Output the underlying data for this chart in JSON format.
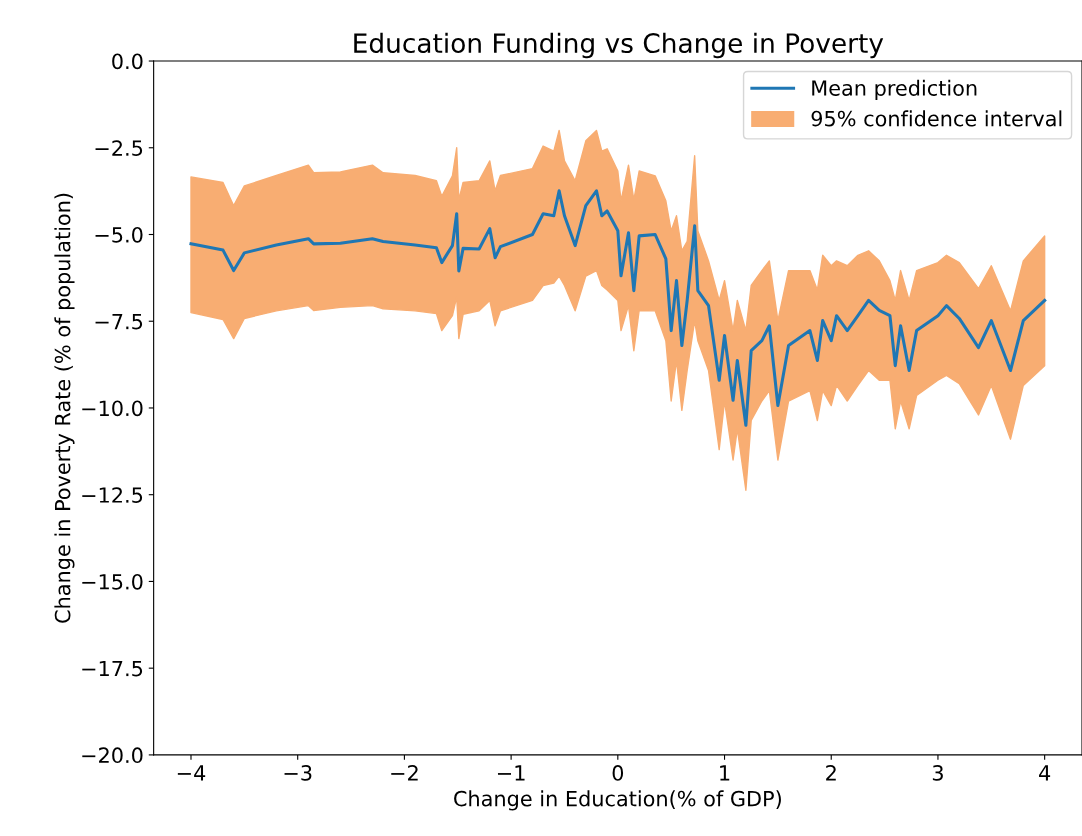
{
  "chart_data": {
    "type": "line",
    "title": "Education Funding vs Change in Poverty",
    "xlabel": "Change in Education(% of GDP)",
    "ylabel": "Change in Poverty Rate (% of population)",
    "x": [
      -4,
      -3.7,
      -3.6,
      -3.5,
      -3.2,
      -2.9,
      -2.85,
      -2.6,
      -2.3,
      -2.2,
      -1.9,
      -1.7,
      -1.65,
      -1.55,
      -1.51,
      -1.49,
      -1.45,
      -1.3,
      -1.2,
      -1.15,
      -1.1,
      -0.8,
      -0.7,
      -0.6,
      -0.55,
      -0.5,
      -0.4,
      -0.3,
      -0.2,
      -0.15,
      -0.1,
      0,
      0.03,
      0.1,
      0.15,
      0.2,
      0.35,
      0.45,
      0.5,
      0.55,
      0.6,
      0.65,
      0.72,
      0.75,
      0.85,
      0.95,
      1.0,
      1.08,
      1.12,
      1.2,
      1.25,
      1.35,
      1.42,
      1.5,
      1.6,
      1.8,
      1.87,
      1.92,
      2.0,
      2.05,
      2.15,
      2.25,
      2.35,
      2.45,
      2.55,
      2.6,
      2.65,
      2.73,
      2.8,
      3.0,
      3.08,
      3.2,
      3.38,
      3.5,
      3.68,
      3.8,
      4.0
    ],
    "series": [
      {
        "name": "Mean prediction",
        "color": "#1f77b4",
        "values": [
          -5.27,
          -5.45,
          -6.04,
          -5.53,
          -5.3,
          -5.12,
          -5.27,
          -5.25,
          -5.12,
          -5.2,
          -5.3,
          -5.38,
          -5.81,
          -5.32,
          -4.4,
          -6.05,
          -5.4,
          -5.42,
          -4.83,
          -5.67,
          -5.35,
          -5.0,
          -4.4,
          -4.46,
          -3.74,
          -4.46,
          -5.32,
          -4.17,
          -3.74,
          -4.46,
          -4.32,
          -4.89,
          -6.19,
          -4.95,
          -6.62,
          -5.04,
          -5.0,
          -5.7,
          -7.77,
          -6.33,
          -8.2,
          -6.9,
          -4.75,
          -6.62,
          -7.05,
          -9.2,
          -7.91,
          -9.78,
          -8.63,
          -10.5,
          -8.35,
          -8.06,
          -7.63,
          -9.93,
          -8.2,
          -7.77,
          -8.63,
          -7.48,
          -8.06,
          -7.34,
          -7.77,
          -7.34,
          -6.9,
          -7.19,
          -7.34,
          -8.78,
          -7.63,
          -8.92,
          -7.77,
          -7.34,
          -7.05,
          -7.42,
          -8.26,
          -7.48,
          -8.92,
          -7.48,
          -6.9
        ],
        "lower": [
          -7.25,
          -7.45,
          -8.0,
          -7.42,
          -7.2,
          -7.05,
          -7.19,
          -7.1,
          -7.05,
          -7.14,
          -7.2,
          -7.28,
          -7.77,
          -7.34,
          -6.8,
          -8.0,
          -7.3,
          -7.2,
          -6.9,
          -7.63,
          -7.2,
          -6.9,
          -6.47,
          -6.4,
          -6.2,
          -6.47,
          -7.2,
          -6.2,
          -6.04,
          -6.47,
          -6.6,
          -6.9,
          -7.77,
          -7.05,
          -8.35,
          -7.19,
          -7.2,
          -8.06,
          -9.8,
          -8.63,
          -10.07,
          -8.92,
          -7.48,
          -8.06,
          -8.92,
          -11.2,
          -9.8,
          -11.5,
          -10.6,
          -12.37,
          -10.36,
          -9.8,
          -9.5,
          -11.5,
          -9.8,
          -9.5,
          -10.36,
          -9.5,
          -9.93,
          -9.35,
          -9.8,
          -9.35,
          -8.92,
          -9.2,
          -9.2,
          -10.6,
          -9.8,
          -10.6,
          -9.64,
          -9.2,
          -9.06,
          -9.3,
          -10.2,
          -9.35,
          -10.9,
          -9.35,
          -8.78
        ],
        "upper": [
          -3.34,
          -3.5,
          -4.17,
          -3.6,
          -3.3,
          -3.0,
          -3.22,
          -3.2,
          -3.0,
          -3.22,
          -3.3,
          -3.45,
          -3.9,
          -3.31,
          -2.5,
          -4.0,
          -3.5,
          -3.45,
          -2.88,
          -3.74,
          -3.3,
          -3.1,
          -2.45,
          -2.6,
          -2.0,
          -2.88,
          -3.45,
          -2.3,
          -2.0,
          -2.6,
          -2.53,
          -3.17,
          -4.03,
          -3.0,
          -4.0,
          -3.17,
          -3.31,
          -4.03,
          -4.9,
          -4.46,
          -5.47,
          -5.2,
          -2.73,
          -4.9,
          -5.76,
          -6.9,
          -6.33,
          -7.77,
          -6.9,
          -7.77,
          -6.47,
          -6.04,
          -5.76,
          -7.48,
          -6.04,
          -6.04,
          -6.6,
          -5.6,
          -5.9,
          -5.76,
          -5.9,
          -5.6,
          -5.47,
          -5.76,
          -6.33,
          -6.9,
          -6.04,
          -6.9,
          -6.04,
          -5.81,
          -5.6,
          -5.81,
          -6.56,
          -5.9,
          -7.2,
          -5.76,
          -5.04
        ]
      },
      {
        "type": "area",
        "name": "95% confidence interval",
        "color": "#f8ad72",
        "values": [
          null,
          null,
          null,
          null,
          null,
          null,
          null,
          null,
          null,
          null,
          null,
          null,
          null,
          null,
          null,
          null,
          null,
          null,
          null,
          null,
          null,
          null,
          null,
          null,
          null,
          null,
          null,
          null,
          null,
          null,
          null,
          null,
          null,
          null,
          null,
          null,
          null,
          null,
          null,
          null,
          null,
          null,
          null,
          null,
          null,
          null,
          null,
          null,
          null,
          null,
          null,
          null,
          null,
          null,
          null,
          null,
          null,
          null,
          null,
          null,
          null,
          null,
          null,
          null,
          null,
          null,
          null,
          null,
          null,
          null,
          null,
          null,
          null,
          null,
          null,
          null,
          null
        ]
      }
    ],
    "xlim": [
      -4.35,
      4.35
    ],
    "ylim": [
      -20,
      0
    ],
    "xticks": [
      {
        "value": -4,
        "label": "−4"
      },
      {
        "value": -3,
        "label": "−3"
      },
      {
        "value": -2,
        "label": "−2"
      },
      {
        "value": -1,
        "label": "−1"
      },
      0,
      1,
      2,
      3,
      4
    ],
    "yticks": [
      {
        "value": -20,
        "label": "−20.0"
      },
      {
        "value": -17.5,
        "label": "−17.5"
      },
      {
        "value": -15,
        "label": "−15.0"
      },
      {
        "value": -12.5,
        "label": "−12.5"
      },
      {
        "value": -10,
        "label": "−10.0"
      },
      {
        "value": -7.5,
        "label": "−7.5"
      },
      {
        "value": -5,
        "label": "−5.0"
      },
      {
        "value": -2.5,
        "label": "−2.5"
      },
      {
        "value": 0,
        "label": "0.0"
      }
    ],
    "legend": "top right",
    "grid": false,
    "marker": "none",
    "line_style": "solid"
  }
}
